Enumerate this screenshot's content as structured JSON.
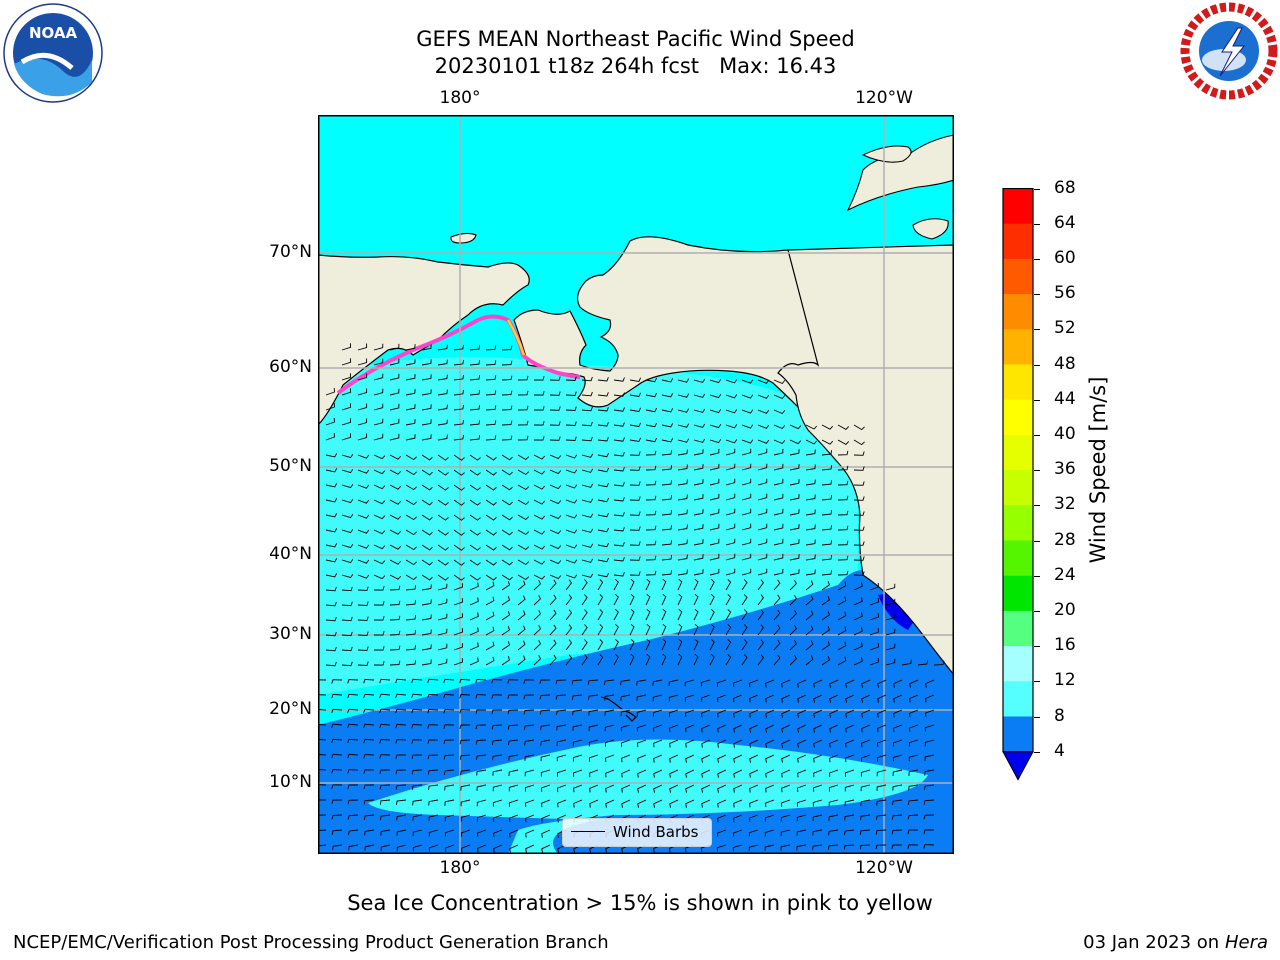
{
  "title": {
    "line1": "GEFS MEAN Northeast Pacific Wind Speed",
    "line2": "20230101 t18z 264h fcst   Max: 16.43"
  },
  "map": {
    "top_lon_labels": [
      "180°",
      "120°W"
    ],
    "bottom_lon_labels": [
      "180°",
      "120°W"
    ],
    "lat_labels": [
      "70°N",
      "60°N",
      "50°N",
      "40°N",
      "30°N",
      "20°N",
      "10°N"
    ],
    "legend_label": "Wind Barbs",
    "colors": {
      "land": "#efeddc",
      "ocean_4_8": "#0a7df5",
      "ocean_8_12": "#00ffff",
      "ocean_12_16": "#41fbfb",
      "grid": "#b0b0b0",
      "ice_pink": "#ff44cc",
      "ice_yellow": "#ffd21e"
    }
  },
  "colorbar": {
    "label": "Wind Speed [m/s]",
    "ticks": [
      "68",
      "64",
      "60",
      "56",
      "52",
      "48",
      "44",
      "40",
      "36",
      "32",
      "28",
      "24",
      "20",
      "16",
      "12",
      "8",
      "4"
    ],
    "colors_top_to_bottom": [
      "#ff0000",
      "#ff2e00",
      "#ff5a00",
      "#ff8c00",
      "#ffb300",
      "#ffe600",
      "#ffff00",
      "#e6ff00",
      "#c8ff00",
      "#96ff00",
      "#55f500",
      "#00e600",
      "#55ff80",
      "#a5ffff",
      "#55ffff",
      "#00ffff",
      "#0a7df5"
    ],
    "under_color": "#0000ee"
  },
  "note": "Sea Ice Concentration > 15% is shown in pink to yellow",
  "footer": {
    "left": "NCEP/EMC/Verification Post Processing Product Generation Branch",
    "right_date": "03 Jan 2023 on ",
    "right_machine": "Hera"
  },
  "logos": {
    "noaa": "NOAA",
    "nws": "NATIONAL WEATHER SERVICE"
  }
}
